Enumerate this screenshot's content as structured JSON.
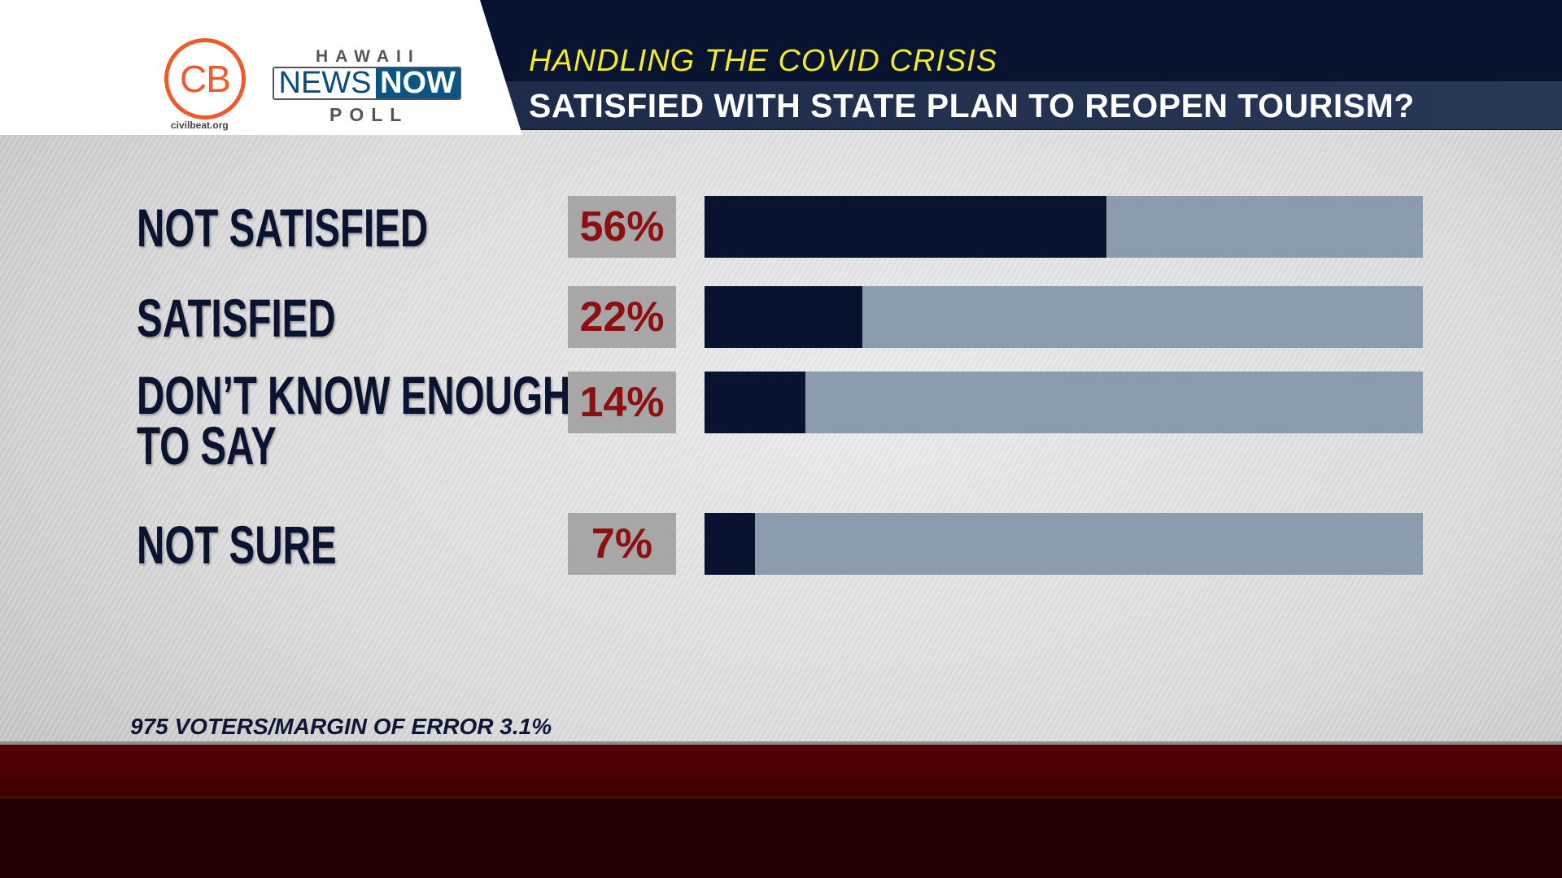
{
  "header": {
    "kicker": "HANDLING THE COVID CRISIS",
    "title": "SATISFIED WITH STATE PLAN TO REOPEN TOURISM?"
  },
  "logos": {
    "cb": "CB",
    "cb_url": "civilbeat.org",
    "hnn_top": "HAWAII",
    "hnn_news": "NEWS",
    "hnn_now": "NOW",
    "hnn_bottom": "POLL"
  },
  "chart_data": {
    "type": "bar",
    "title": "SATISFIED WITH STATE PLAN TO REOPEN TOURISM?",
    "categories": [
      "NOT SATISFIED",
      "SATISFIED",
      "DON’T KNOW ENOUGH TO SAY",
      "NOT SURE"
    ],
    "label_lines": [
      [
        "NOT SATISFIED"
      ],
      [
        "SATISFIED"
      ],
      [
        "DON’T KNOW ENOUGH",
        "TO SAY"
      ],
      [
        "NOT SURE"
      ]
    ],
    "values": [
      56,
      22,
      14,
      7
    ],
    "value_labels": [
      "56%",
      "22%",
      "14%",
      "7%"
    ],
    "xlim": [
      0,
      100
    ],
    "colors": {
      "fill": "#081330",
      "track": "#8a9cae",
      "value_text": "#8c1010"
    }
  },
  "footer": {
    "note": "975 VOTERS/MARGIN OF ERROR 3.1%"
  }
}
